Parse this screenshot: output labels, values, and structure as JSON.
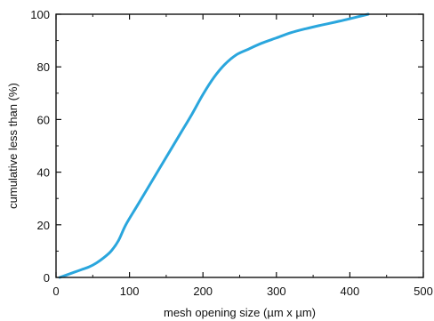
{
  "chart_data": {
    "type": "line",
    "title": "",
    "xlabel": "mesh opening size (µm x µm)",
    "ylabel": "cumulative less than (%)",
    "xlim": [
      0,
      500
    ],
    "ylim": [
      0,
      100
    ],
    "xticks": [
      0,
      100,
      200,
      300,
      400,
      500
    ],
    "yticks": [
      0,
      20,
      40,
      60,
      80,
      100
    ],
    "grid": false,
    "line_color": "#2aa6dd",
    "series": [
      {
        "x": [
          5,
          15,
          25,
          35,
          45,
          55,
          65,
          75,
          85,
          95,
          110,
          125,
          140,
          155,
          170,
          185,
          200,
          215,
          230,
          245,
          260,
          280,
          300,
          320,
          340,
          360,
          380,
          400,
          425
        ],
        "values": [
          0,
          1,
          2,
          3,
          4,
          5.5,
          7.5,
          10,
          14,
          20,
          27,
          34,
          41,
          48,
          55,
          62,
          69.5,
          76,
          81,
          84.5,
          86.5,
          89,
          91,
          93,
          94.5,
          95.8,
          97,
          98.3,
          100
        ]
      }
    ]
  }
}
